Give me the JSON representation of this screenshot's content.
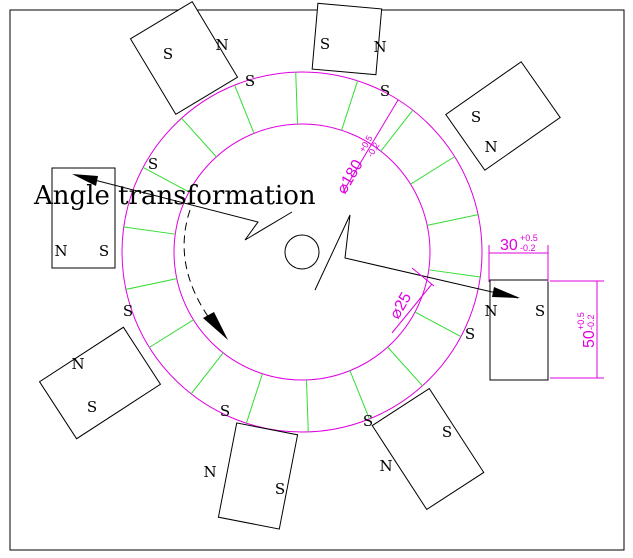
{
  "annotation": "Angle transformation",
  "dimensions": {
    "outer_diameter": {
      "value": "⌀180",
      "upper": "+0.5",
      "lower": "-0.2"
    },
    "hole_diameter": {
      "value": "⌀25"
    },
    "magnet_width": {
      "value": "30",
      "upper": "+0.5",
      "lower": "-0.2"
    },
    "magnet_length": {
      "value": "50",
      "upper": "+0.5",
      "lower": "-0.2"
    }
  },
  "magnets": [
    {
      "labels": [
        "S",
        "N"
      ]
    },
    {
      "labels": [
        "S",
        "N"
      ]
    },
    {
      "labels": [
        "S",
        "N"
      ]
    },
    {
      "labels": [
        "N",
        "S"
      ]
    },
    {
      "labels": [
        "N",
        "S"
      ]
    },
    {
      "labels": [
        "N",
        "S"
      ]
    },
    {
      "labels": [
        "N",
        "S"
      ]
    },
    {
      "labels": [
        "S",
        "N"
      ]
    }
  ],
  "ring_labels": [
    "S",
    "S",
    "S",
    "S",
    "S",
    "S",
    "S"
  ]
}
